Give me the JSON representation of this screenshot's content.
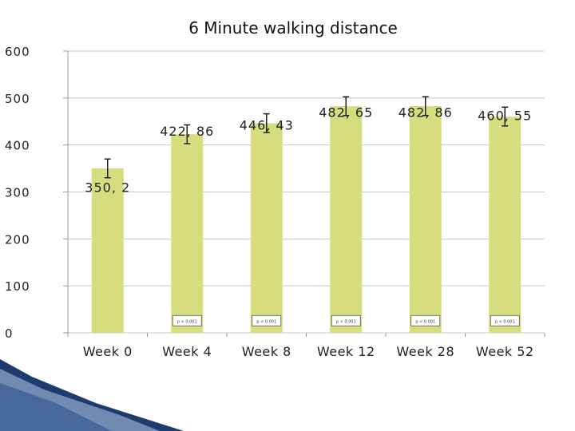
{
  "chart_data": {
    "type": "bar",
    "title": "6 Minute walking distance",
    "categories": [
      "Week 0",
      "Week 4",
      "Week 8",
      "Week 12",
      "Week 28",
      "Week 52"
    ],
    "values": [
      350.2,
      422.86,
      446.43,
      482.65,
      482.86,
      460.55
    ],
    "data_labels": [
      "350, 2",
      "422, 86",
      "446, 43",
      "482, 65",
      "482, 86",
      "460, 55"
    ],
    "error_bars": [
      20,
      20,
      20,
      20,
      20,
      20
    ],
    "p_values": [
      "",
      "p < 0.001",
      "p < 0.001",
      "p < 0.001",
      "p < 0.001",
      "p < 0.001"
    ],
    "y_ticks": [
      "0",
      "100",
      "200",
      "300",
      "400",
      "500",
      "600"
    ],
    "ylim": [
      0,
      600
    ],
    "grid": true,
    "legend": "none",
    "bar_color": "#d6dd7e",
    "grid_color": "#c8c8c8"
  }
}
